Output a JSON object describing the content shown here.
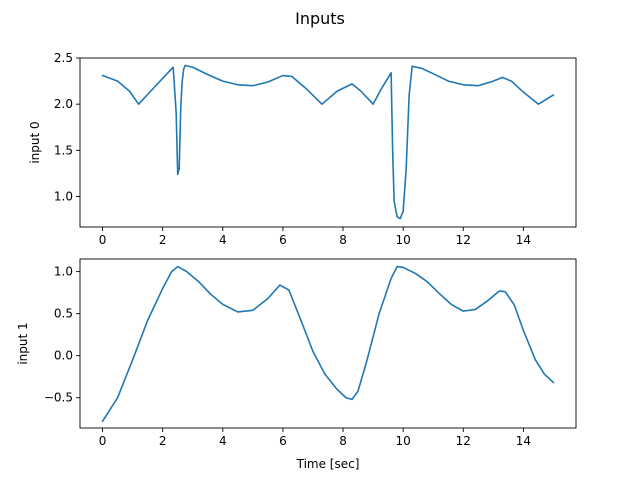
{
  "figure": {
    "title": "Inputs"
  },
  "chart_data": [
    {
      "type": "line",
      "title": "",
      "xlabel": "",
      "ylabel": "input 0",
      "xlim": [
        -0.75,
        15.75
      ],
      "ylim": [
        0.67,
        2.5
      ],
      "xticks": [
        0,
        2,
        4,
        6,
        8,
        10,
        12,
        14
      ],
      "yticks": [
        1.0,
        1.5,
        2.0,
        2.5
      ],
      "ytick_labels": [
        "1.0",
        "1.5",
        "2.0",
        "2.5"
      ],
      "grid": false,
      "color": "#1f77b4",
      "series": [
        {
          "x": [
            0,
            0.5,
            0.9,
            1.2,
            1.6,
            2.0,
            2.35,
            2.45,
            2.5,
            2.55,
            2.6,
            2.65,
            2.7,
            2.75,
            3.0,
            3.5,
            4.0,
            4.5,
            5.0,
            5.5,
            6.0,
            6.3,
            6.8,
            7.3,
            7.8,
            8.3,
            8.6,
            9.0,
            9.3,
            9.6,
            9.65,
            9.7,
            9.8,
            9.9,
            10.0,
            10.1,
            10.2,
            10.3,
            10.6,
            11.0,
            11.5,
            12.0,
            12.5,
            13.0,
            13.3,
            13.6,
            14.0,
            14.5,
            15.0
          ],
          "y": [
            2.31,
            2.25,
            2.14,
            2.0,
            2.14,
            2.28,
            2.4,
            1.9,
            1.24,
            1.3,
            1.95,
            2.25,
            2.38,
            2.42,
            2.4,
            2.32,
            2.25,
            2.21,
            2.2,
            2.24,
            2.31,
            2.3,
            2.16,
            2.0,
            2.14,
            2.22,
            2.14,
            2.0,
            2.18,
            2.34,
            1.5,
            0.95,
            0.78,
            0.76,
            0.84,
            1.3,
            2.1,
            2.41,
            2.39,
            2.33,
            2.25,
            2.21,
            2.2,
            2.25,
            2.29,
            2.25,
            2.13,
            2.0,
            2.1
          ]
        }
      ]
    },
    {
      "type": "line",
      "title": "",
      "xlabel": "Time [sec]",
      "ylabel": "input 1",
      "xlim": [
        -0.75,
        15.75
      ],
      "ylim": [
        -0.86,
        1.15
      ],
      "xticks": [
        0,
        2,
        4,
        6,
        8,
        10,
        12,
        14
      ],
      "yticks": [
        -0.5,
        0.0,
        0.5,
        1.0
      ],
      "ytick_labels": [
        "−0.5",
        "0.0",
        "0.5",
        "1.0"
      ],
      "grid": false,
      "color": "#1f77b4",
      "series": [
        {
          "x": [
            0,
            0.5,
            1.0,
            1.5,
            2.0,
            2.3,
            2.5,
            2.8,
            3.2,
            3.6,
            4.0,
            4.5,
            5.0,
            5.5,
            5.9,
            6.2,
            6.6,
            7.0,
            7.4,
            7.8,
            8.1,
            8.3,
            8.5,
            8.8,
            9.2,
            9.6,
            9.8,
            10.0,
            10.4,
            10.8,
            11.2,
            11.6,
            12.0,
            12.4,
            12.8,
            13.2,
            13.4,
            13.7,
            14.0,
            14.4,
            14.7,
            15.0
          ],
          "y": [
            -0.78,
            -0.5,
            -0.05,
            0.42,
            0.8,
            1.0,
            1.06,
            1.0,
            0.88,
            0.73,
            0.61,
            0.52,
            0.54,
            0.68,
            0.84,
            0.78,
            0.42,
            0.05,
            -0.22,
            -0.4,
            -0.5,
            -0.52,
            -0.42,
            -0.05,
            0.5,
            0.92,
            1.06,
            1.05,
            0.98,
            0.88,
            0.74,
            0.61,
            0.53,
            0.55,
            0.65,
            0.77,
            0.76,
            0.6,
            0.3,
            -0.05,
            -0.22,
            -0.32
          ]
        }
      ]
    }
  ]
}
